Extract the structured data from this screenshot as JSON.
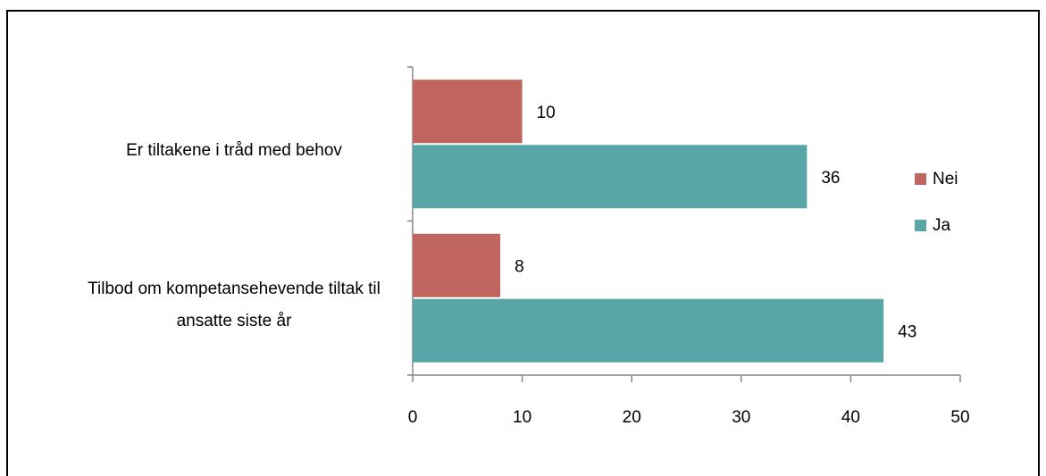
{
  "chart_data": {
    "type": "bar",
    "orientation": "horizontal",
    "categories": [
      "Er tiltakene i tråd med behov",
      "Tilbod om kompetansehevende tiltak til ansatte siste år"
    ],
    "series": [
      {
        "name": "Nei",
        "color": "#c0655f",
        "values": [
          10,
          8
        ]
      },
      {
        "name": "Ja",
        "color": "#59a6a8",
        "values": [
          36,
          43
        ]
      }
    ],
    "xlim": [
      0,
      50
    ],
    "xticks": [
      0,
      10,
      20,
      30,
      40,
      50
    ],
    "grid": false,
    "legend": "right"
  }
}
